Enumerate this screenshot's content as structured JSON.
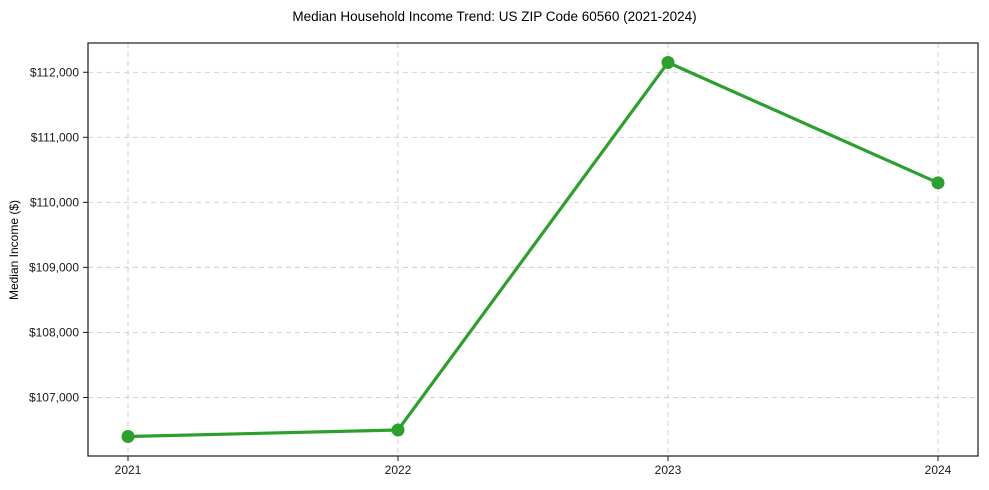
{
  "chart_data": {
    "type": "line",
    "title": "Median Household Income Trend: US ZIP Code 60560 (2021-2024)",
    "xlabel": "",
    "ylabel": "Median Income ($)",
    "categories": [
      "2021",
      "2022",
      "2023",
      "2024"
    ],
    "values": [
      106400,
      106500,
      112150,
      110300
    ],
    "ylim": [
      106100,
      112450
    ],
    "yticks": {
      "values": [
        107000,
        108000,
        109000,
        110000,
        111000,
        112000
      ],
      "labels": [
        "$107,000",
        "$108,000",
        "$109,000",
        "$110,000",
        "$111,000",
        "$112,000"
      ]
    },
    "grid": true,
    "legend": "none",
    "colors": {
      "line": "#2ca02c",
      "marker": "#2ca02c",
      "grid": "#cdcdcd",
      "spine": "#1a1a1a",
      "text": "#1a1a1a",
      "background": "#ffffff"
    }
  }
}
